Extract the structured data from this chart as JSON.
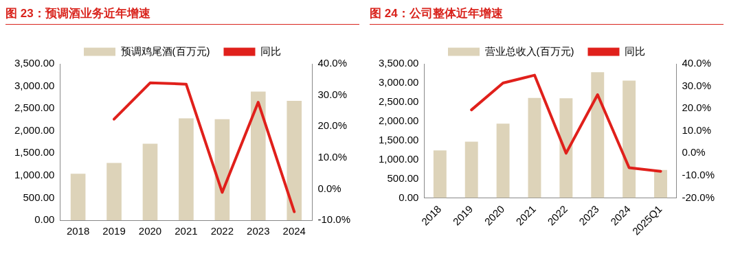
{
  "chart_data": [
    {
      "type": "bar",
      "title": "图 23：预调酒业务近年增速",
      "categories": [
        "2018",
        "2019",
        "2020",
        "2021",
        "2022",
        "2023",
        "2024"
      ],
      "series": [
        {
          "name": "预调鸡尾酒(百万元)",
          "color": "#ddd3b9",
          "values": [
            1040,
            1280,
            1710,
            2280,
            2260,
            2880,
            2670
          ]
        },
        {
          "name": "同比",
          "type": "line",
          "axis": "y2",
          "color": "#e0201b",
          "values": [
            null,
            22.3,
            33.9,
            33.5,
            -1.1,
            27.7,
            -7.3
          ]
        }
      ],
      "ylim": [
        0,
        3500
      ],
      "yticks": [
        {
          "value": 0,
          "label": "0.00"
        },
        {
          "value": 500,
          "label": "500.00"
        },
        {
          "value": 1000,
          "label": "1,000.00"
        },
        {
          "value": 1500,
          "label": "1,500.00"
        },
        {
          "value": 2000,
          "label": "2,000.00"
        },
        {
          "value": 2500,
          "label": "2,500.00"
        },
        {
          "value": 3000,
          "label": "3,000.00"
        },
        {
          "value": 3500,
          "label": "3,500.00"
        }
      ],
      "y2lim": [
        -10,
        40
      ],
      "y2ticks": [
        {
          "value": -10,
          "label": "-10.0%"
        },
        {
          "value": 0,
          "label": "0.0%"
        },
        {
          "value": 10,
          "label": "10.0%"
        },
        {
          "value": 20,
          "label": "20.0%"
        },
        {
          "value": 30,
          "label": "30.0%"
        },
        {
          "value": 40,
          "label": "40.0%"
        }
      ],
      "grid": false,
      "legend": "top",
      "marker": "none",
      "line_style": "solid"
    },
    {
      "type": "bar",
      "title": "图 24：公司整体近年增速",
      "categories": [
        "2018",
        "2019",
        "2020",
        "2021",
        "2022",
        "2023",
        "2024",
        "2025Q1"
      ],
      "series": [
        {
          "name": "营业总收入(百万元)",
          "color": "#ddd3b9",
          "values": [
            1240,
            1470,
            1940,
            2610,
            2600,
            3280,
            3060,
            730
          ]
        },
        {
          "name": "同比",
          "type": "line",
          "axis": "y2",
          "color": "#e0201b",
          "values": [
            null,
            19.4,
            31.4,
            34.9,
            0.0,
            26.2,
            -6.5,
            -8.1
          ]
        }
      ],
      "ylim": [
        0,
        3500
      ],
      "yticks": [
        {
          "value": 0,
          "label": "0.00"
        },
        {
          "value": 500,
          "label": "500.00"
        },
        {
          "value": 1000,
          "label": "1,000.00"
        },
        {
          "value": 1500,
          "label": "1,500.00"
        },
        {
          "value": 2000,
          "label": "2,000.00"
        },
        {
          "value": 2500,
          "label": "2,500.00"
        },
        {
          "value": 3000,
          "label": "3,000.00"
        },
        {
          "value": 3500,
          "label": "3,500.00"
        }
      ],
      "y2lim": [
        -20,
        40
      ],
      "y2ticks": [
        {
          "value": -20,
          "label": "-20.0%"
        },
        {
          "value": -10,
          "label": "-10.0%"
        },
        {
          "value": 0,
          "label": "0.0%"
        },
        {
          "value": 10,
          "label": "10.0%"
        },
        {
          "value": 20,
          "label": "20.0%"
        },
        {
          "value": 30,
          "label": "30.0%"
        },
        {
          "value": 40,
          "label": "40.0%"
        }
      ],
      "grid": false,
      "legend": "top",
      "marker": "none",
      "line_style": "solid"
    }
  ]
}
